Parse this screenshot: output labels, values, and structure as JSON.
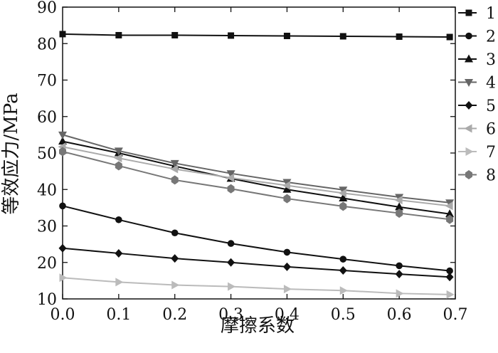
{
  "chart_data": {
    "type": "line",
    "title": "",
    "xlabel": "摩擦系数",
    "ylabel": "等效应力/MPa",
    "xlim": [
      0.0,
      0.7
    ],
    "ylim": [
      10,
      90
    ],
    "xticks": [
      "0.0",
      "0.1",
      "0.2",
      "0.3",
      "0.4",
      "0.5",
      "0.6",
      "0.7"
    ],
    "yticks": [
      "10",
      "20",
      "30",
      "40",
      "50",
      "60",
      "70",
      "80",
      "90"
    ],
    "grid": false,
    "legend_position": "right",
    "x": [
      0.0,
      0.1,
      0.2,
      0.3,
      0.4,
      0.5,
      0.6,
      0.69
    ],
    "series": [
      {
        "name": "1",
        "marker": "square",
        "color": "#111111",
        "values": [
          82.6,
          82.3,
          82.3,
          82.2,
          82.1,
          82.0,
          81.9,
          81.8
        ]
      },
      {
        "name": "2",
        "marker": "circle",
        "color": "#111111",
        "values": [
          35.5,
          31.7,
          28.1,
          25.2,
          22.8,
          20.9,
          19.1,
          17.7
        ]
      },
      {
        "name": "3",
        "marker": "triangle-up",
        "color": "#111111",
        "values": [
          53.2,
          50.0,
          46.4,
          43.0,
          40.0,
          37.6,
          35.2,
          33.3
        ]
      },
      {
        "name": "4",
        "marker": "triangle-down",
        "color": "#666666",
        "values": [
          55.0,
          50.6,
          47.2,
          44.4,
          42.0,
          39.9,
          37.9,
          36.4
        ]
      },
      {
        "name": "5",
        "marker": "diamond",
        "color": "#111111",
        "values": [
          23.9,
          22.5,
          21.1,
          20.0,
          18.8,
          17.8,
          16.8,
          16.0
        ]
      },
      {
        "name": "6",
        "marker": "triangle-left",
        "color": "#aaaaaa",
        "values": [
          51.7,
          48.6,
          45.6,
          43.2,
          41.1,
          39.0,
          37.1,
          35.5
        ]
      },
      {
        "name": "7",
        "marker": "triangle-right",
        "color": "#bbbbbb",
        "values": [
          15.8,
          14.6,
          13.8,
          13.4,
          12.7,
          12.3,
          11.5,
          11.2
        ]
      },
      {
        "name": "8",
        "marker": "hex-diamond",
        "color": "#777777",
        "values": [
          50.4,
          46.5,
          42.6,
          40.2,
          37.5,
          35.4,
          33.5,
          31.8
        ]
      }
    ]
  }
}
